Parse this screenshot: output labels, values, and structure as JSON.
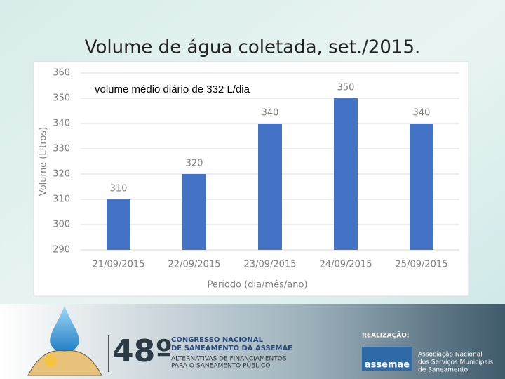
{
  "chart_data": {
    "type": "bar",
    "title": "Volume de água coletada, set./2015.",
    "annotation": "volume médio diário de 332 L/dia",
    "xlabel": "Período (dia/mês/ano)",
    "ylabel": "Volume (Litros)",
    "categories": [
      "21/09/2015",
      "22/09/2015",
      "23/09/2015",
      "24/09/2015",
      "25/09/2015"
    ],
    "values": [
      310,
      320,
      340,
      350,
      340
    ],
    "color": "#4472c4",
    "ylim": [
      290,
      360
    ],
    "yticks": [
      290,
      300,
      310,
      320,
      330,
      340,
      350,
      360
    ],
    "grid": true
  },
  "footer": {
    "edition": "48º",
    "congress": [
      "CONGRESSO NACIONAL",
      "DE SANEAMENTO DA ASSEMAE"
    ],
    "theme": [
      "ALTERNATIVAS DE FINANCIAMENTOS",
      "PARA O SANEAMENTO PÚBLICO"
    ],
    "realization": "REALIZAÇÃO:",
    "org_logo": "assemae",
    "org_name": [
      "Associação Nacional",
      "dos Serviços Municipais",
      "de Saneamento"
    ]
  }
}
